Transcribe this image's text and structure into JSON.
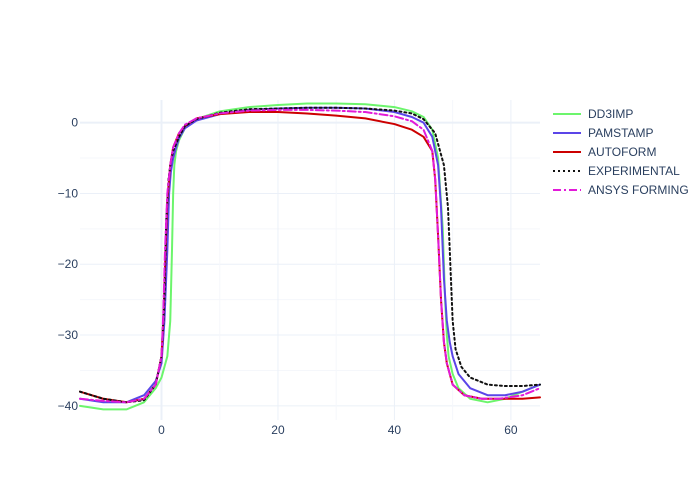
{
  "chart_data": {
    "type": "line",
    "title": "",
    "xlabel": "",
    "ylabel": "",
    "xlim": [
      -14,
      65
    ],
    "ylim": [
      -42,
      3.2
    ],
    "xticks": [
      0,
      20,
      40,
      60
    ],
    "yticks": [
      0,
      -10,
      -20,
      -30,
      -40
    ],
    "grid": true,
    "legend_position": "right",
    "series": [
      {
        "name": "DD3IMP",
        "color": "#6cf56c",
        "dash": "solid",
        "x": [
          -14,
          -10,
          -6,
          -3,
          -1,
          0,
          1,
          1.5,
          1.8,
          2,
          2.2,
          2.5,
          3,
          4,
          6,
          10,
          15,
          20,
          25,
          30,
          35,
          40,
          43,
          45,
          46.5,
          47.5,
          48.3,
          48.7,
          49,
          49.3,
          50,
          51,
          53,
          56,
          59,
          62,
          65
        ],
        "y": [
          -40,
          -40.5,
          -40.5,
          -39.5,
          -37.5,
          -36,
          -33,
          -28,
          -18,
          -10,
          -6,
          -4,
          -2.5,
          -0.8,
          0.5,
          1.6,
          2.2,
          2.5,
          2.7,
          2.7,
          2.6,
          2.2,
          1.6,
          0.8,
          -1,
          -5,
          -15,
          -25,
          -30,
          -33,
          -35.5,
          -37.5,
          -39,
          -39.5,
          -39,
          -38,
          -37
        ]
      },
      {
        "name": "PAMSTAMP",
        "color": "#5b45e8",
        "dash": "solid",
        "x": [
          -14,
          -10,
          -6,
          -3,
          -1,
          0,
          0.5,
          1,
          1.3,
          1.6,
          2,
          2.5,
          3,
          4,
          6,
          10,
          15,
          20,
          25,
          30,
          35,
          40,
          43,
          45,
          46.5,
          47.5,
          48,
          48.5,
          49,
          49.5,
          50,
          51,
          53,
          56,
          59,
          62,
          65
        ],
        "y": [
          -39,
          -39.5,
          -39.5,
          -38.5,
          -36.5,
          -34,
          -28,
          -18,
          -10,
          -7,
          -5,
          -3.5,
          -2.2,
          -0.8,
          0.3,
          1.2,
          1.8,
          2,
          2.1,
          2.1,
          2,
          1.5,
          0.8,
          0,
          -2,
          -6,
          -12,
          -22,
          -28,
          -31,
          -33,
          -35.5,
          -37.5,
          -38.5,
          -38.5,
          -38,
          -37
        ]
      },
      {
        "name": "AUTOFORM",
        "color": "#cc0000",
        "dash": "solid",
        "x": [
          -14,
          -10,
          -6,
          -3,
          -1,
          0,
          0.3,
          0.7,
          1,
          1.5,
          2,
          3,
          4,
          6,
          10,
          15,
          20,
          25,
          30,
          35,
          40,
          43,
          45,
          46.5,
          47,
          47.5,
          48,
          48.5,
          49,
          50,
          52,
          55,
          58,
          62,
          65
        ],
        "y": [
          -38,
          -39,
          -39.5,
          -39,
          -37,
          -33,
          -28,
          -18,
          -11,
          -6,
          -3.5,
          -1.5,
          -0.5,
          0.6,
          1.2,
          1.5,
          1.5,
          1.3,
          1,
          0.6,
          -0.2,
          -1,
          -2,
          -4,
          -8,
          -16,
          -25,
          -31,
          -34,
          -37,
          -38.5,
          -39,
          -39,
          -39,
          -38.8
        ]
      },
      {
        "name": "EXPERIMENTAL",
        "color": "#111111",
        "dash": "dotted",
        "x": [
          -14,
          -10,
          -6,
          -3,
          -1,
          0,
          0.5,
          0.8,
          1.2,
          1.6,
          2,
          3,
          4,
          6,
          10,
          15,
          20,
          25,
          30,
          35,
          40,
          43,
          45,
          47,
          48.5,
          49.2,
          49.7,
          50,
          50.5,
          51.5,
          53,
          56,
          59,
          62,
          65
        ],
        "y": [
          -38,
          -39,
          -39.5,
          -39.2,
          -37,
          -33,
          -25,
          -14,
          -8,
          -5.5,
          -4,
          -2,
          -0.5,
          0.5,
          1.4,
          1.9,
          2,
          2.1,
          2.1,
          2,
          1.7,
          1.3,
          0.5,
          -1.5,
          -6,
          -12,
          -22,
          -28,
          -32,
          -34.5,
          -36,
          -37,
          -37.2,
          -37.2,
          -37
        ]
      },
      {
        "name": "ANSYS FORMING",
        "color": "#e21ad9",
        "dash": "dashdot",
        "x": [
          -14,
          -10,
          -6,
          -3,
          -1,
          0,
          0.3,
          0.6,
          1,
          1.5,
          2,
          3,
          4,
          6,
          10,
          15,
          20,
          25,
          30,
          35,
          40,
          43,
          45,
          46.5,
          47,
          47.5,
          48,
          48.5,
          49,
          50,
          52,
          55,
          58,
          62,
          65
        ],
        "y": [
          -39,
          -39.3,
          -39.5,
          -39,
          -37,
          -33,
          -27,
          -18,
          -10,
          -6,
          -3.5,
          -1.5,
          -0.3,
          0.6,
          1.3,
          1.7,
          1.8,
          1.8,
          1.7,
          1.5,
          0.9,
          0.2,
          -1,
          -4,
          -8,
          -16,
          -25,
          -31,
          -34,
          -37,
          -38.5,
          -39,
          -39,
          -38.5,
          -37.5
        ]
      }
    ]
  }
}
